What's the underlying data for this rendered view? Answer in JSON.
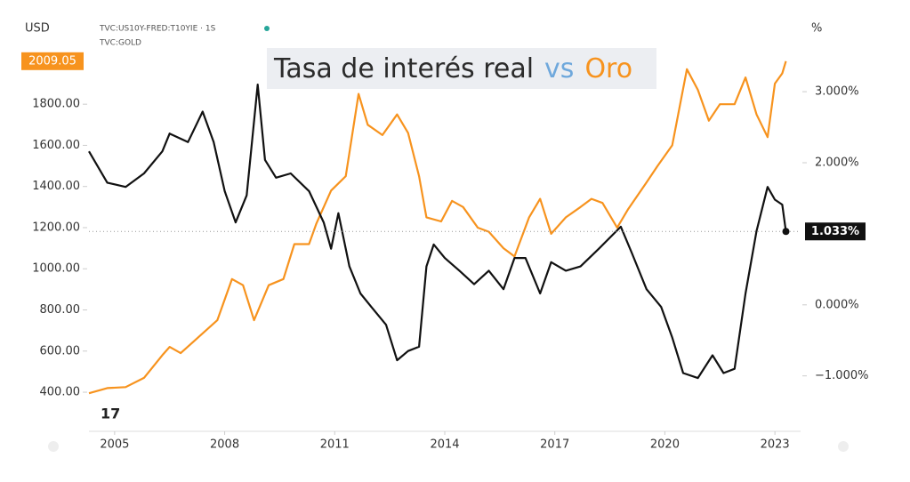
{
  "chart_data": {
    "type": "line",
    "title_parts": [
      {
        "text": "Tasa de interés real",
        "color": "#2b2b2b"
      },
      {
        "text": "vs",
        "color": "#6fa8dc"
      },
      {
        "text": "Oro",
        "color": "#f7931e"
      }
    ],
    "y_unit": "USD",
    "y2_unit": "%",
    "symbol_labels": [
      "TVC:US10Y-FRED:T10YIE · 1S",
      "TVC:GOLD"
    ],
    "xlim": [
      2004.3,
      2023.7
    ],
    "xticks": [
      2005,
      2008,
      2011,
      2014,
      2017,
      2020,
      2023
    ],
    "ylim": [
      210,
      2220
    ],
    "yticks": [
      {
        "value": 400,
        "label": "400.00"
      },
      {
        "value": 600,
        "label": "600.00"
      },
      {
        "value": 800,
        "label": "800.00"
      },
      {
        "value": 1000,
        "label": "1000.00"
      },
      {
        "value": 1200,
        "label": "1200.00"
      },
      {
        "value": 1400,
        "label": "1400.00"
      },
      {
        "value": 1600,
        "label": "1600.00"
      },
      {
        "value": 1800,
        "label": "1800.00"
      }
    ],
    "y2lim": [
      -1.78,
      4.04
    ],
    "y2ticks": [
      {
        "value": -1,
        "label": "−1.000%"
      },
      {
        "value": 0,
        "label": "0.000%"
      },
      {
        "value": 2,
        "label": "2.000%"
      },
      {
        "value": 3,
        "label": "3.000%"
      }
    ],
    "series": [
      {
        "name": "TVC:GOLD",
        "color": "#f7931e",
        "axis": "y",
        "x": [
          2004.3,
          2004.8,
          2005.3,
          2005.8,
          2006.3,
          2006.5,
          2006.8,
          2007.3,
          2007.8,
          2008.2,
          2008.5,
          2008.8,
          2009.2,
          2009.6,
          2009.9,
          2010.3,
          2010.5,
          2010.9,
          2011.3,
          2011.65,
          2011.9,
          2012.3,
          2012.7,
          2013.0,
          2013.3,
          2013.5,
          2013.9,
          2014.2,
          2014.5,
          2014.9,
          2015.2,
          2015.6,
          2015.9,
          2016.3,
          2016.6,
          2016.9,
          2017.3,
          2017.7,
          2018.0,
          2018.3,
          2018.7,
          2019.0,
          2019.5,
          2019.8,
          2020.2,
          2020.6,
          2020.9,
          2021.2,
          2021.5,
          2021.9,
          2022.2,
          2022.5,
          2022.8,
          2023.0,
          2023.2,
          2023.3
        ],
        "values": [
          395,
          420,
          425,
          470,
          580,
          620,
          590,
          670,
          750,
          950,
          920,
          750,
          920,
          950,
          1120,
          1120,
          1220,
          1380,
          1450,
          1850,
          1700,
          1650,
          1750,
          1660,
          1450,
          1250,
          1230,
          1330,
          1300,
          1200,
          1180,
          1100,
          1060,
          1250,
          1340,
          1170,
          1250,
          1300,
          1340,
          1320,
          1200,
          1290,
          1420,
          1500,
          1600,
          1970,
          1870,
          1720,
          1800,
          1800,
          1930,
          1750,
          1640,
          1900,
          1950,
          2009.05
        ],
        "price_label": {
          "value": 2009.05,
          "label": "2009.05"
        }
      },
      {
        "name": "TVC:US10Y-FRED:T10YIE",
        "color": "#111111",
        "axis": "y2",
        "x": [
          2004.3,
          2004.8,
          2005.3,
          2005.8,
          2006.3,
          2006.5,
          2007.0,
          2007.4,
          2007.7,
          2008.0,
          2008.3,
          2008.6,
          2008.9,
          2009.1,
          2009.4,
          2009.8,
          2010.3,
          2010.7,
          2010.9,
          2011.1,
          2011.4,
          2011.7,
          2012.0,
          2012.4,
          2012.7,
          2013.0,
          2013.3,
          2013.5,
          2013.7,
          2014.0,
          2014.4,
          2014.8,
          2015.2,
          2015.6,
          2015.9,
          2016.2,
          2016.6,
          2016.9,
          2017.3,
          2017.7,
          2018.2,
          2018.8,
          2019.1,
          2019.5,
          2019.9,
          2020.2,
          2020.5,
          2020.9,
          2021.3,
          2021.6,
          2021.9,
          2022.2,
          2022.5,
          2022.8,
          2023.0,
          2023.2,
          2023.3
        ],
        "values": [
          2.16,
          1.72,
          1.66,
          1.85,
          2.16,
          2.41,
          2.29,
          2.72,
          2.29,
          1.6,
          1.16,
          1.54,
          3.1,
          2.04,
          1.79,
          1.85,
          1.6,
          1.16,
          0.79,
          1.29,
          0.54,
          0.16,
          -0.03,
          -0.28,
          -0.78,
          -0.65,
          -0.59,
          0.54,
          0.85,
          0.66,
          0.48,
          0.29,
          0.48,
          0.22,
          0.66,
          0.66,
          0.16,
          0.6,
          0.48,
          0.54,
          0.79,
          1.1,
          0.73,
          0.22,
          -0.03,
          -0.46,
          -0.96,
          -1.03,
          -0.71,
          -0.96,
          -0.9,
          0.16,
          1.04,
          1.66,
          1.48,
          1.41,
          1.033
        ],
        "price_label": {
          "value": 1.033,
          "label": "1.033%"
        }
      }
    ]
  }
}
